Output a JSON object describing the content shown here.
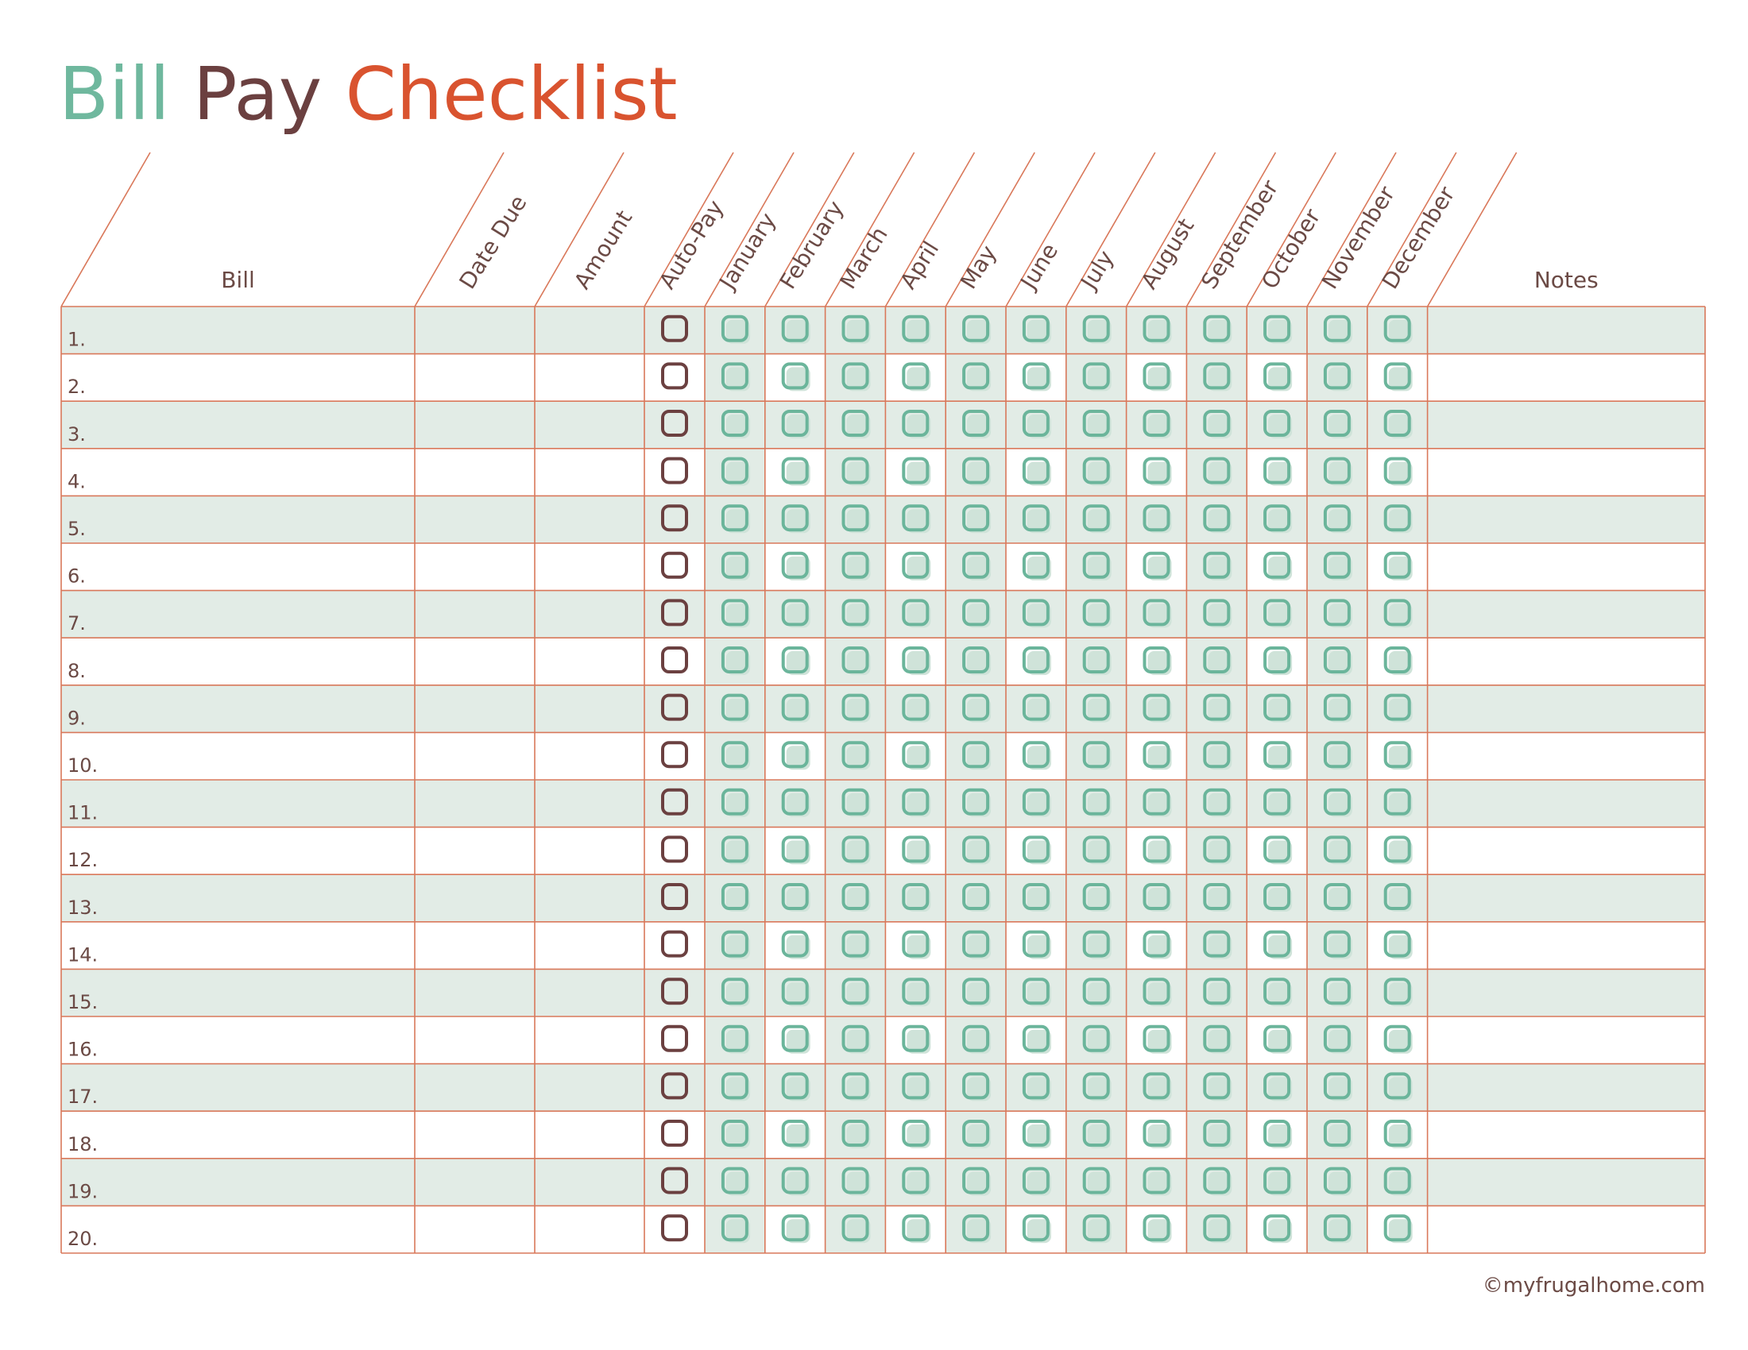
{
  "title": {
    "parts": [
      "Bill",
      "Pay",
      "Checklist"
    ]
  },
  "table": {
    "headers": [
      "Bill",
      "Date Due",
      "Amount",
      "Auto-Pay",
      "January",
      "February",
      "March",
      "April",
      "May",
      "June",
      "July",
      "August",
      "September",
      "October",
      "November",
      "December",
      "Notes"
    ],
    "rows": [
      "1.",
      "2.",
      "3.",
      "4.",
      "5.",
      "6.",
      "7.",
      "8.",
      "9.",
      "10.",
      "11.",
      "12.",
      "13.",
      "14.",
      "15.",
      "16.",
      "17.",
      "18.",
      "19.",
      "20."
    ]
  },
  "footer": "©myfrugalhome.com"
}
